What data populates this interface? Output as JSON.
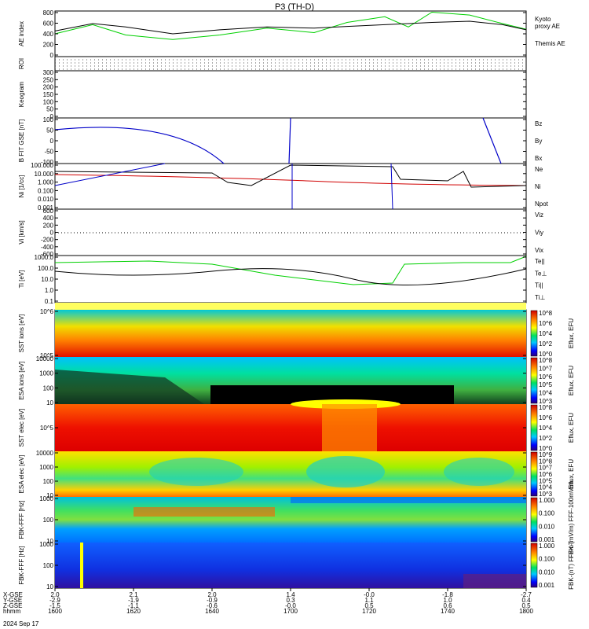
{
  "title": "P3 (TH-D)",
  "colors": {
    "black": "#000000",
    "green": "#00d000",
    "red": "#d00000",
    "blue": "#0000c8"
  },
  "chart_data": [
    {
      "type": "line",
      "panel": "ae",
      "ylabel": "AE index",
      "ylim": [
        0,
        800
      ],
      "yticks": [
        "800",
        "600",
        "400",
        "200",
        "0"
      ],
      "series": [
        {
          "name": "Kyoto proxy AE",
          "color": "green",
          "x": [
            0,
            0.08,
            0.15,
            0.25,
            0.35,
            0.45,
            0.55,
            0.62,
            0.7,
            0.75,
            0.8,
            0.88,
            0.95,
            1.0
          ],
          "y": [
            400,
            560,
            380,
            300,
            380,
            500,
            420,
            600,
            700,
            520,
            780,
            730,
            580,
            480
          ]
        },
        {
          "name": "Themis AE",
          "color": "black",
          "x": [
            0,
            0.08,
            0.15,
            0.25,
            0.35,
            0.45,
            0.55,
            0.62,
            0.7,
            0.75,
            0.8,
            0.88,
            0.95,
            1.0
          ],
          "y": [
            450,
            580,
            520,
            400,
            470,
            520,
            500,
            530,
            560,
            580,
            600,
            620,
            560,
            470
          ]
        }
      ]
    },
    {
      "type": "table",
      "panel": "roi",
      "ylabel": "ROI"
    },
    {
      "type": "line",
      "panel": "keogram",
      "ylabel": "Keogram",
      "ylim": [
        0,
        300
      ],
      "yticks": [
        "300",
        "250",
        "200",
        "150",
        "100",
        "50",
        "0"
      ]
    },
    {
      "type": "line",
      "panel": "bfit",
      "ylabel": "B FIT GSE [nT]",
      "ylim": [
        -100,
        100
      ],
      "yticks": [
        "100",
        "50",
        "0",
        "-50",
        "-100"
      ],
      "series": [
        {
          "name": "Bz",
          "color": "red"
        },
        {
          "name": "By",
          "color": "green"
        },
        {
          "name": "Bx",
          "color": "blue"
        }
      ]
    },
    {
      "type": "line",
      "panel": "ni",
      "ylabel": "Ni [1/cc]",
      "yticks": [
        "100.000",
        "10.000",
        "1.000",
        "0.100",
        "0.010",
        "0.001"
      ],
      "series": [
        {
          "name": "Ne",
          "color": "red"
        },
        {
          "name": "Ni",
          "color": "black"
        },
        {
          "name": "Npot",
          "color": "blue"
        }
      ]
    },
    {
      "type": "line",
      "panel": "vi",
      "ylabel": "Vi [km/s]",
      "ylim": [
        -600,
        600
      ],
      "yticks": [
        "600",
        "400",
        "200",
        "0",
        "-200",
        "-400",
        "-600"
      ],
      "series": [
        {
          "name": "Viz",
          "color": "red"
        },
        {
          "name": "Viy",
          "color": "green"
        },
        {
          "name": "Vix",
          "color": "blue"
        }
      ]
    },
    {
      "type": "line",
      "panel": "ti",
      "ylabel": "Ti [eV]",
      "yticks": [
        "1000.0",
        "100.0",
        "10.0",
        "1.0",
        "0.1"
      ],
      "series": [
        {
          "name": "Te||",
          "color": "black"
        },
        {
          "name": "Te⊥",
          "color": "red"
        },
        {
          "name": "Ti||",
          "color": "green"
        },
        {
          "name": "Ti⊥",
          "color": "blue"
        }
      ]
    },
    {
      "type": "heatmap",
      "panel": "sst_i",
      "ylabel": "SST ions [eV]",
      "yticks": [
        "10^6",
        "10^5"
      ],
      "colorbar": {
        "label": "Eflux, EFU",
        "ticks": [
          "10^8",
          "10^6",
          "10^4",
          "10^2",
          "10^0"
        ]
      }
    },
    {
      "type": "heatmap",
      "panel": "esa_i",
      "ylabel": "ESA ions [eV]",
      "yticks": [
        "10000",
        "1000",
        "100",
        "10"
      ],
      "colorbar": {
        "label": "Eflux, EFU",
        "ticks": [
          "10^8",
          "10^7",
          "10^6",
          "10^5",
          "10^4",
          "10^3"
        ]
      }
    },
    {
      "type": "heatmap",
      "panel": "sst_e",
      "ylabel": "SST elec [eV]",
      "yticks": [
        "10^5"
      ],
      "colorbar": {
        "label": "Eflux, EFU",
        "ticks": [
          "10^8",
          "10^6",
          "10^4",
          "10^2",
          "10^0"
        ]
      }
    },
    {
      "type": "heatmap",
      "panel": "esa_e",
      "ylabel": "ESA elec [eV]",
      "yticks": [
        "10000",
        "1000",
        "100",
        "10"
      ],
      "colorbar": {
        "label": "Eflux, EFU",
        "ticks": [
          "10^9",
          "10^8",
          "10^7",
          "10^6",
          "10^5",
          "10^4",
          "10^3"
        ]
      }
    },
    {
      "type": "heatmap",
      "panel": "fbk1",
      "ylabel": "FBK-FFF [Hz]",
      "yticks": [
        "1000",
        "100",
        "10"
      ],
      "colorbar": {
        "label": "FBK-(mV/m) FFF-100mV/m",
        "ticks": [
          "1.000",
          "0.100",
          "0.010",
          "0.001"
        ]
      }
    },
    {
      "type": "heatmap",
      "panel": "fbk2",
      "ylabel": "FBK-FFF [Hz]",
      "yticks": [
        "1000",
        "100",
        "10"
      ],
      "colorbar": {
        "label": "FBK-(nT) FFF-nT",
        "ticks": [
          "1.000",
          "0.100",
          "0.010",
          "0.001"
        ]
      }
    },
    {
      "type": "table",
      "panel": "axis",
      "rows": [
        {
          "label": "X-GSE",
          "values": [
            "2.0",
            "2.1",
            "2.0",
            "1.4",
            "-0.0",
            "-1.8",
            "-2.7"
          ]
        },
        {
          "label": "Y-GSE",
          "values": [
            "-2.9",
            "-1.9",
            "-0.9",
            "0.3",
            "1.1",
            "1.0",
            "0.4"
          ]
        },
        {
          "label": "Z-GSE",
          "values": [
            "-1.5",
            "-1.1",
            "-0.6",
            "-0.0",
            "0.5",
            "0.6",
            "0.5"
          ]
        },
        {
          "label": "hhmm",
          "values": [
            "1600",
            "1620",
            "1640",
            "1700",
            "1720",
            "1740",
            "1800"
          ]
        }
      ],
      "date": "2024 Sep 17"
    }
  ]
}
